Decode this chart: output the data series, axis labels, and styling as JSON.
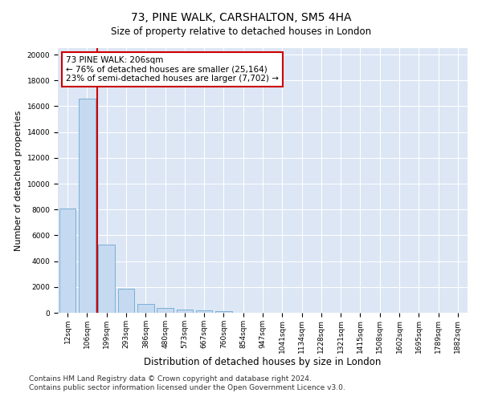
{
  "title": "73, PINE WALK, CARSHALTON, SM5 4HA",
  "subtitle": "Size of property relative to detached houses in London",
  "xlabel": "Distribution of detached houses by size in London",
  "ylabel": "Number of detached properties",
  "categories": [
    "12sqm",
    "106sqm",
    "199sqm",
    "293sqm",
    "386sqm",
    "480sqm",
    "573sqm",
    "667sqm",
    "760sqm",
    "854sqm",
    "947sqm",
    "1041sqm",
    "1134sqm",
    "1228sqm",
    "1321sqm",
    "1415sqm",
    "1508sqm",
    "1602sqm",
    "1695sqm",
    "1789sqm",
    "1882sqm"
  ],
  "values": [
    8100,
    16600,
    5300,
    1850,
    700,
    350,
    270,
    200,
    150,
    0,
    0,
    0,
    0,
    0,
    0,
    0,
    0,
    0,
    0,
    0,
    0
  ],
  "bar_color": "#c5d9f1",
  "bar_edge_color": "#7bafd4",
  "marker_line_color": "#cc0000",
  "annotation_text": "73 PINE WALK: 206sqm\n← 76% of detached houses are smaller (25,164)\n23% of semi-detached houses are larger (7,702) →",
  "annotation_box_color": "#ffffff",
  "annotation_box_edge": "#cc0000",
  "ylim": [
    0,
    20500
  ],
  "yticks": [
    0,
    2000,
    4000,
    6000,
    8000,
    10000,
    12000,
    14000,
    16000,
    18000,
    20000
  ],
  "footer_line1": "Contains HM Land Registry data © Crown copyright and database right 2024.",
  "footer_line2": "Contains public sector information licensed under the Open Government Licence v3.0.",
  "bg_color": "#ffffff",
  "plot_bg_color": "#dce6f5",
  "grid_color": "#ffffff",
  "title_fontsize": 10,
  "axis_label_fontsize": 8,
  "tick_fontsize": 6.5,
  "footer_fontsize": 6.5,
  "annotation_fontsize": 7.5
}
